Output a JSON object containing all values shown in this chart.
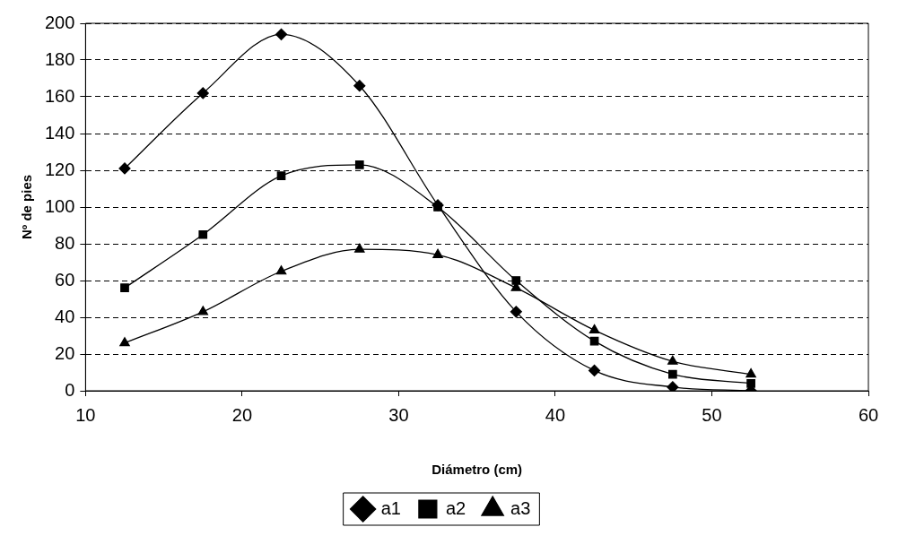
{
  "chart_data": {
    "type": "line",
    "xlabel": "Diámetro (cm)",
    "ylabel": "Nº de pies",
    "x": [
      12.5,
      17.5,
      22.5,
      27.5,
      32.5,
      37.5,
      42.5,
      47.5,
      52.5
    ],
    "series": [
      {
        "name": "a1",
        "color": "#000000",
        "marker": "diamond",
        "values": [
          121,
          162,
          194,
          166,
          101,
          43,
          11,
          2,
          0
        ]
      },
      {
        "name": "a2",
        "color": "#000000",
        "marker": "square",
        "values": [
          56,
          85,
          117,
          123,
          100,
          60,
          27,
          9,
          4
        ]
      },
      {
        "name": "a3",
        "color": "#000000",
        "marker": "triangle",
        "values": [
          26,
          43,
          65,
          77,
          74,
          56,
          33,
          16,
          9
        ]
      }
    ],
    "xlim": [
      10,
      60
    ],
    "xticks": [
      10,
      20,
      30,
      40,
      50,
      60
    ],
    "ylim": [
      0,
      200
    ],
    "yticks": [
      0,
      20,
      40,
      60,
      80,
      100,
      120,
      140,
      160,
      180,
      200
    ],
    "grid": "y",
    "legend": "bottom",
    "line_style": "solid"
  }
}
